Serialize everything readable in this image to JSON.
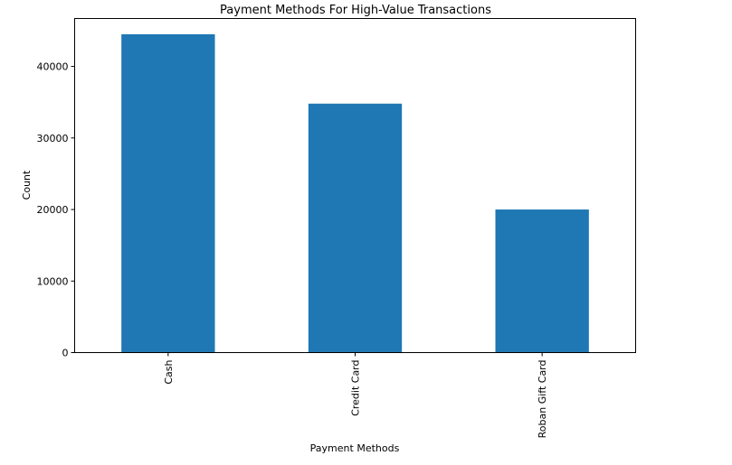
{
  "chart_data": {
    "type": "bar",
    "title": "Payment Methods For High-Value Transactions",
    "xlabel": "Payment Methods",
    "ylabel": "Count",
    "categories": [
      "Cash",
      "Credit Card",
      "Roban Gift Card"
    ],
    "values": [
      44500,
      34800,
      20000
    ],
    "ylim": [
      0,
      46700
    ],
    "yticks": [
      0,
      10000,
      20000,
      30000,
      40000
    ],
    "ytick_labels": [
      "0",
      "10000",
      "20000",
      "30000",
      "40000"
    ],
    "bar_color": "#1f77b4",
    "grid": false,
    "legend": "none"
  }
}
